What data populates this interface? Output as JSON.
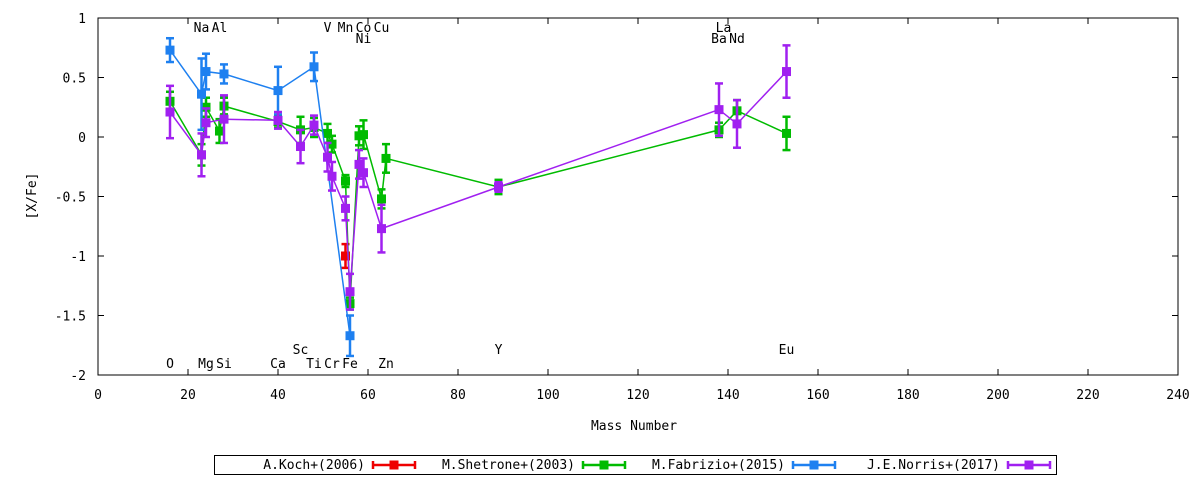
{
  "chart_data": {
    "type": "scatter",
    "title": "",
    "xlabel": "Mass Number",
    "ylabel": "[X/Fe]",
    "xlim": [
      0,
      240
    ],
    "ylim": [
      -2,
      1
    ],
    "xticks": [
      0,
      20,
      40,
      60,
      80,
      100,
      120,
      140,
      160,
      180,
      200,
      220,
      240
    ],
    "yticks": [
      -2,
      -1.5,
      -1,
      -0.5,
      0,
      0.5,
      1
    ],
    "grid": false,
    "legend_position": "bottom",
    "element_labels": [
      {
        "text": "Na",
        "x": 23,
        "row": "top1"
      },
      {
        "text": "Al",
        "x": 27,
        "row": "top1"
      },
      {
        "text": "V",
        "x": 51,
        "row": "top1"
      },
      {
        "text": "Mn",
        "x": 55,
        "row": "top1"
      },
      {
        "text": "Co",
        "x": 59,
        "row": "top1"
      },
      {
        "text": "Cu",
        "x": 63,
        "row": "top1"
      },
      {
        "text": "Ni",
        "x": 59,
        "row": "top2"
      },
      {
        "text": "La",
        "x": 139,
        "row": "top1"
      },
      {
        "text": "Ba",
        "x": 138,
        "row": "top2"
      },
      {
        "text": "Nd",
        "x": 142,
        "row": "top2"
      },
      {
        "text": "Sc",
        "x": 45,
        "row": "bottom2"
      },
      {
        "text": "Y",
        "x": 89,
        "row": "bottom2"
      },
      {
        "text": "Eu",
        "x": 153,
        "row": "bottom2"
      },
      {
        "text": "O",
        "x": 16,
        "row": "bottom1"
      },
      {
        "text": "Mg",
        "x": 24,
        "row": "bottom1"
      },
      {
        "text": "Si",
        "x": 28,
        "row": "bottom1"
      },
      {
        "text": "Ca",
        "x": 40,
        "row": "bottom1"
      },
      {
        "text": "Ti",
        "x": 48,
        "row": "bottom1"
      },
      {
        "text": "Cr",
        "x": 52,
        "row": "bottom1"
      },
      {
        "text": "Fe",
        "x": 56,
        "row": "bottom1"
      },
      {
        "text": "Zn",
        "x": 64,
        "row": "bottom1"
      }
    ],
    "series": [
      {
        "name": "A.Koch+(2006)",
        "color": "#ee0000",
        "points": [
          {
            "x": 55,
            "y": -1.0,
            "err": 0.1
          }
        ]
      },
      {
        "name": "M.Shetrone+(2003)",
        "color": "#00bb00",
        "points": [
          {
            "x": 16,
            "y": 0.3,
            "err": 0.08
          },
          {
            "x": 23,
            "y": -0.15,
            "err": 0.09
          },
          {
            "x": 24,
            "y": 0.25,
            "err": 0.08
          },
          {
            "x": 27,
            "y": 0.05,
            "err": 0.1
          },
          {
            "x": 28,
            "y": 0.26,
            "err": 0.07
          },
          {
            "x": 40,
            "y": 0.13,
            "err": 0.05
          },
          {
            "x": 45,
            "y": 0.06,
            "err": 0.11
          },
          {
            "x": 48,
            "y": 0.08,
            "err": 0.08
          },
          {
            "x": 51,
            "y": 0.03,
            "err": 0.08
          },
          {
            "x": 52,
            "y": -0.06,
            "err": 0.07
          },
          {
            "x": 55,
            "y": -0.37,
            "err": 0.05
          },
          {
            "x": 56,
            "y": -1.4,
            "err": 0.05
          },
          {
            "x": 58,
            "y": 0.01,
            "err": 0.08
          },
          {
            "x": 59,
            "y": 0.02,
            "err": 0.12
          },
          {
            "x": 63,
            "y": -0.52,
            "err": 0.08
          },
          {
            "x": 64,
            "y": -0.18,
            "err": 0.12
          },
          {
            "x": 89,
            "y": -0.42,
            "err": 0.06
          },
          {
            "x": 138,
            "y": 0.06,
            "err": 0.06
          },
          {
            "x": 142,
            "y": 0.22,
            "err": 0.09
          },
          {
            "x": 153,
            "y": 0.03,
            "err": 0.14
          }
        ]
      },
      {
        "name": "M.Fabrizio+(2015)",
        "color": "#1e80f0",
        "points": [
          {
            "x": 16,
            "y": 0.73,
            "err": 0.1
          },
          {
            "x": 23,
            "y": 0.36,
            "err": 0.3
          },
          {
            "x": 24,
            "y": 0.55,
            "err": 0.15
          },
          {
            "x": 28,
            "y": 0.53,
            "err": 0.08
          },
          {
            "x": 40,
            "y": 0.39,
            "err": 0.2
          },
          {
            "x": 48,
            "y": 0.59,
            "err": 0.12
          },
          {
            "x": 56,
            "y": -1.67,
            "err": 0.17
          }
        ]
      },
      {
        "name": "J.E.Norris+(2017)",
        "color": "#a020f0",
        "points": [
          {
            "x": 16,
            "y": 0.21,
            "err": 0.22
          },
          {
            "x": 23,
            "y": -0.15,
            "err": 0.18
          },
          {
            "x": 24,
            "y": 0.12,
            "err": 0.12
          },
          {
            "x": 28,
            "y": 0.15,
            "err": 0.2
          },
          {
            "x": 40,
            "y": 0.14,
            "err": 0.07
          },
          {
            "x": 45,
            "y": -0.08,
            "err": 0.14
          },
          {
            "x": 48,
            "y": 0.1,
            "err": 0.08
          },
          {
            "x": 51,
            "y": -0.17,
            "err": 0.12
          },
          {
            "x": 52,
            "y": -0.33,
            "err": 0.12
          },
          {
            "x": 55,
            "y": -0.6,
            "err": 0.1
          },
          {
            "x": 56,
            "y": -1.3,
            "err": 0.15
          },
          {
            "x": 58,
            "y": -0.23,
            "err": 0.12
          },
          {
            "x": 59,
            "y": -0.3,
            "err": 0.12
          },
          {
            "x": 63,
            "y": -0.77,
            "err": 0.2
          },
          {
            "x": 89,
            "y": -0.42,
            "err": 0.04
          },
          {
            "x": 138,
            "y": 0.23,
            "err": 0.22
          },
          {
            "x": 142,
            "y": 0.11,
            "err": 0.2
          },
          {
            "x": 153,
            "y": 0.55,
            "err": 0.22
          }
        ]
      }
    ]
  }
}
